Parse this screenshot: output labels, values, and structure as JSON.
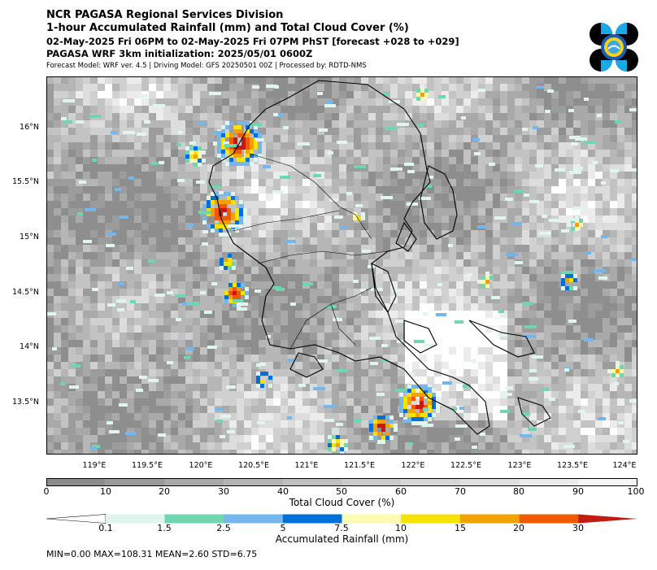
{
  "header": {
    "line1": "NCR PAGASA Regional Services Division",
    "line2": "1-hour Accumulated Rainfall (mm) and Total Cloud Cover (%)",
    "line3": "02-May-2025 Fri 06PM to 02-May-2025 Fri 07PM PhST [forecast +028 to +029]",
    "line4": "PAGASA WRF 3km initialization: 2025/05/01 0600Z",
    "line5": "Forecast Model: WRF ver. 4.5 | Driving Model: GFS 20250501 00Z | Processed by: RDTD-NMS"
  },
  "map": {
    "lat_ticks": [
      "16°N",
      "15.5°N",
      "15°N",
      "14.5°N",
      "14°N",
      "13.5°N"
    ],
    "lon_ticks": [
      "119°E",
      "119.5°E",
      "120°E",
      "120.5°E",
      "121°E",
      "121.5°E",
      "122°E",
      "122.5°E",
      "123°E",
      "123.5°E",
      "124°E"
    ]
  },
  "cloud_colorbar": {
    "label": "Total Cloud Cover (%)",
    "ticks": [
      "0",
      "10",
      "20",
      "30",
      "40",
      "50",
      "60",
      "70",
      "80",
      "90",
      "100"
    ],
    "colors": [
      "#8c8c8c",
      "#9a9a9a",
      "#a8a8a8",
      "#b4b4b4",
      "#c0c0c0",
      "#cccccc",
      "#d6d6d6",
      "#e0e0e0",
      "#ebebeb",
      "#f5f5f5"
    ]
  },
  "rain_colorbar": {
    "label": "Accumulated Rainfall (mm)",
    "ticks": [
      "0.1",
      "1.5",
      "2.5",
      "5",
      "7.5",
      "10",
      "15",
      "20",
      "30"
    ],
    "colors": [
      "#dff5ee",
      "#6fd6b0",
      "#74b6ee",
      "#0070d8",
      "#fffbb0",
      "#f7e300",
      "#f3a100",
      "#ef5a00",
      "#c31a12"
    ]
  },
  "stats": {
    "text": "MIN=0.00   MAX=108.31   MEAN=2.60   STD=6.75"
  }
}
